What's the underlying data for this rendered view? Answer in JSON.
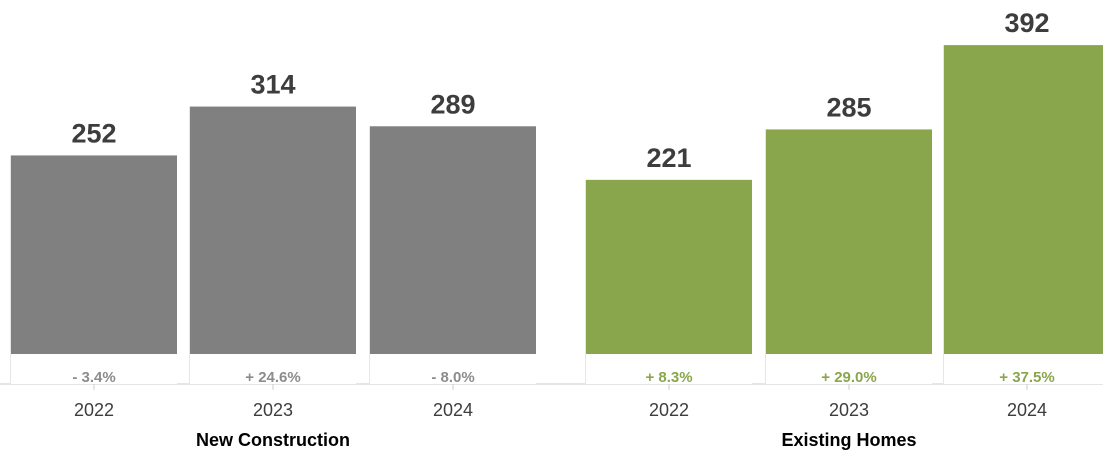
{
  "chart_data": {
    "type": "bar",
    "title": "",
    "xlabel": "",
    "ylabel": "",
    "ylim": [
      0,
      400
    ],
    "groups": [
      {
        "name": "New Construction",
        "color": "#808080",
        "change_color": "#8c8c8c",
        "categories": [
          "2022",
          "2023",
          "2024"
        ],
        "values": [
          252,
          314,
          289
        ],
        "value_labels": [
          "252",
          "314",
          "289"
        ],
        "changes": [
          "- 3.4%",
          "+ 24.6%",
          "- 8.0%"
        ]
      },
      {
        "name": "Existing Homes",
        "color": "#8aa64c",
        "change_color": "#8aa64c",
        "categories": [
          "2022",
          "2023",
          "2024"
        ],
        "values": [
          221,
          285,
          392
        ],
        "value_labels": [
          "221",
          "285",
          "392"
        ],
        "changes": [
          "+ 8.3%",
          "+ 29.0%",
          "+ 37.5%"
        ]
      }
    ]
  }
}
